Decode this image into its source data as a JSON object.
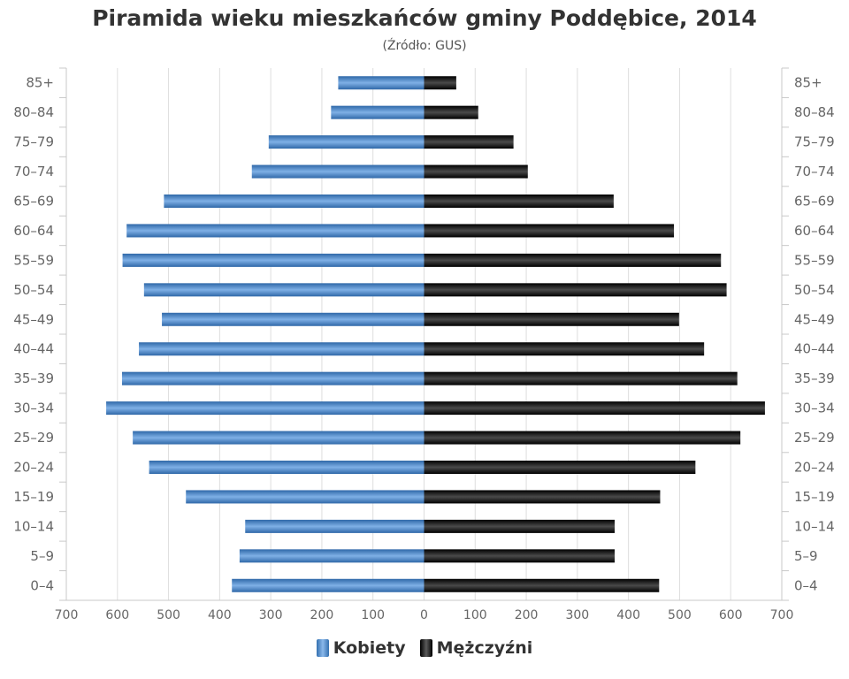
{
  "title": "Piramida wieku mieszkańców gminy Poddębice, 2014",
  "subtitle": "(Źródło: GUS)",
  "chart_data": {
    "type": "bar",
    "orientation": "horizontal",
    "layout": "population-pyramid",
    "title": "Piramida wieku mieszkańców gminy Poddębice, 2014",
    "subtitle": "(Źródło: GUS)",
    "categories": [
      "0–4",
      "5–9",
      "10–14",
      "15–19",
      "20–24",
      "25–29",
      "30–34",
      "35–39",
      "40–44",
      "45–49",
      "50–54",
      "55–59",
      "60–64",
      "65–69",
      "70–74",
      "75–79",
      "80–84",
      "85+"
    ],
    "series": [
      {
        "name": "Kobiety",
        "side": "left",
        "color": "#4a87c8",
        "values": [
          376,
          361,
          350,
          466,
          538,
          570,
          622,
          591,
          558,
          513,
          548,
          590,
          582,
          509,
          337,
          304,
          182,
          168
        ]
      },
      {
        "name": "Mężczyźni",
        "side": "right",
        "color": "#1a1a1a",
        "values": [
          460,
          373,
          373,
          462,
          531,
          619,
          667,
          613,
          548,
          499,
          592,
          581,
          489,
          371,
          203,
          175,
          106,
          63
        ]
      }
    ],
    "x_ticks": [
      "700",
      "600",
      "500",
      "400",
      "300",
      "200",
      "100",
      "0",
      "100",
      "200",
      "300",
      "400",
      "500",
      "600",
      "700"
    ],
    "xlim": [
      -700,
      700
    ],
    "grid": true,
    "legend_position": "bottom-center",
    "legend": [
      "Kobiety",
      "Mężczyźni"
    ]
  }
}
